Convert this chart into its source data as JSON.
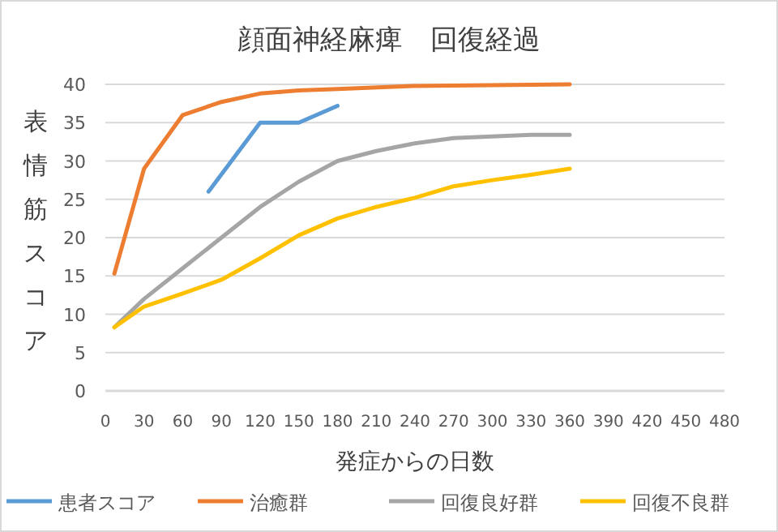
{
  "chart_data": {
    "type": "line",
    "title": "顔面神経麻痺　回復経過",
    "xlabel": "発症からの日数",
    "ylabel": "表情筋スコア",
    "xlim": [
      0,
      480
    ],
    "xticks": [
      0,
      30,
      60,
      90,
      120,
      150,
      180,
      210,
      240,
      270,
      300,
      330,
      360,
      390,
      420,
      450,
      480
    ],
    "ylim": [
      0,
      40
    ],
    "yticks": [
      0,
      5,
      10,
      15,
      20,
      25,
      30,
      35,
      40
    ],
    "grid": "y",
    "legend": "bottom",
    "marker": "none",
    "line_style": "solid",
    "series": [
      {
        "name": "患者スコア",
        "color": "#5b9bd5",
        "x": [
          80,
          120,
          150,
          180
        ],
        "values": [
          26,
          35,
          35,
          37.2
        ]
      },
      {
        "name": "治癒群",
        "color": "#ed7d31",
        "x": [
          7,
          30,
          60,
          90,
          120,
          150,
          180,
          240,
          360
        ],
        "values": [
          15.3,
          29,
          36,
          37.7,
          38.8,
          39.2,
          39.4,
          39.8,
          40
        ]
      },
      {
        "name": "回復良好群",
        "color": "#a5a5a5",
        "x": [
          7,
          30,
          60,
          90,
          120,
          150,
          180,
          210,
          240,
          270,
          300,
          330,
          360
        ],
        "values": [
          8.3,
          12,
          16,
          20,
          24,
          27.3,
          30,
          31.3,
          32.3,
          33,
          33.2,
          33.4,
          33.4
        ]
      },
      {
        "name": "回復不良群",
        "color": "#ffc000",
        "x": [
          7,
          30,
          60,
          90,
          120,
          150,
          180,
          210,
          240,
          270,
          300,
          330,
          360
        ],
        "values": [
          8.3,
          11,
          12.7,
          14.5,
          17.3,
          20.3,
          22.5,
          24,
          25.2,
          26.7,
          27.5,
          28.2,
          29
        ]
      }
    ]
  }
}
